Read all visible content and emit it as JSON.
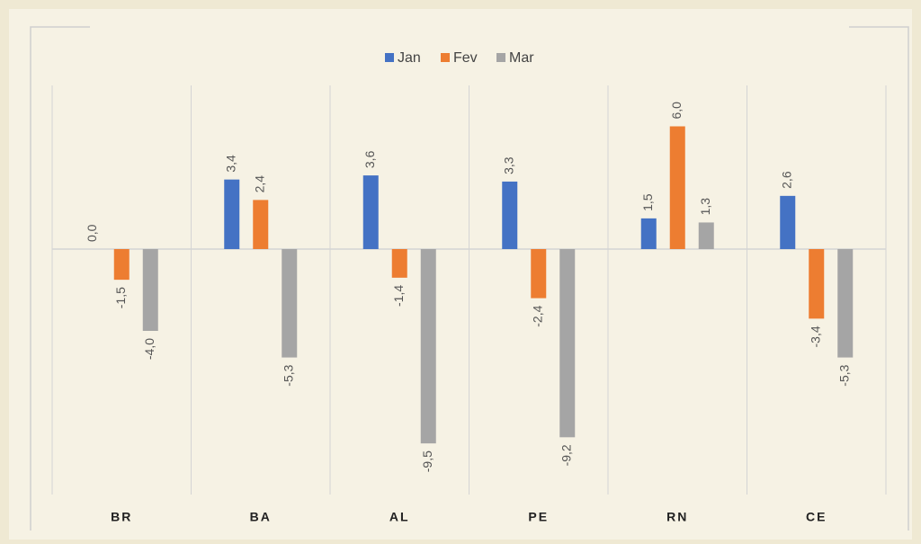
{
  "chart_data": {
    "type": "bar",
    "categories": [
      "BR",
      "BA",
      "AL",
      "PE",
      "RN",
      "CE"
    ],
    "series": [
      {
        "name": "Jan",
        "color": "#4472c4",
        "values": [
          0.0,
          3.4,
          3.6,
          3.3,
          1.5,
          2.6
        ],
        "value_labels": [
          "0,0",
          "3,4",
          "3,6",
          "3,3",
          "1,5",
          "2,6"
        ]
      },
      {
        "name": "Fev",
        "color": "#ed7d31",
        "values": [
          -1.5,
          2.4,
          -1.4,
          -2.4,
          6.0,
          -3.4
        ],
        "value_labels": [
          "-1,5",
          "2,4",
          "-1,4",
          "-2,4",
          "6,0",
          "-3,4"
        ]
      },
      {
        "name": "Mar",
        "color": "#a5a5a5",
        "values": [
          -4.0,
          -5.3,
          -9.5,
          -9.2,
          1.3,
          -5.3
        ],
        "value_labels": [
          "-4,0",
          "-5,3",
          "-9,5",
          "-9,2",
          "1,3",
          "-5,3"
        ]
      }
    ],
    "ylim": [
      -12,
      8
    ],
    "legend": "top"
  }
}
